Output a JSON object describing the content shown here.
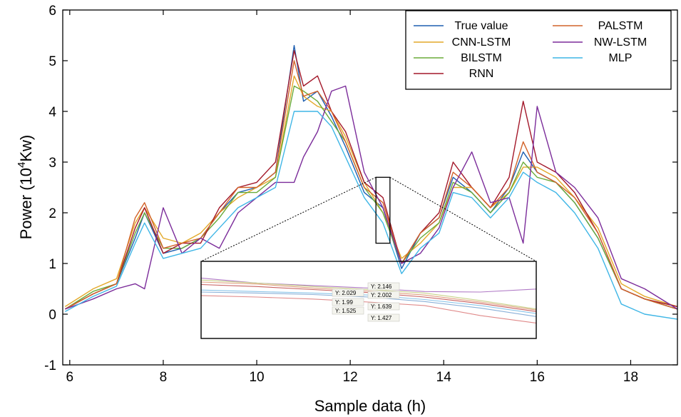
{
  "chart_data": {
    "type": "line",
    "xlabel": "Sample data (h)",
    "ylabel": {
      "main": "Power (10",
      "sup": "4",
      "tail": "Kw)"
    },
    "xlim": [
      5.85,
      19.0
    ],
    "ylim": [
      -1,
      6
    ],
    "xticks": [
      6,
      8,
      10,
      12,
      14,
      16,
      18
    ],
    "yticks": [
      -1,
      0,
      1,
      2,
      3,
      4,
      5,
      6
    ],
    "grid": false,
    "legend_position": "top-right",
    "x": [
      5.9,
      6.5,
      7.0,
      7.4,
      7.6,
      8.0,
      8.4,
      8.8,
      9.2,
      9.6,
      10.0,
      10.4,
      10.8,
      11.0,
      11.3,
      11.6,
      11.9,
      12.3,
      12.7,
      13.1,
      13.5,
      13.9,
      14.2,
      14.6,
      15.0,
      15.4,
      15.7,
      16.0,
      16.4,
      16.8,
      17.3,
      17.8,
      18.3,
      19.0
    ],
    "series": [
      {
        "name": "True value",
        "color": "#1f5fb0",
        "values": [
          0.1,
          0.4,
          0.6,
          1.5,
          2.0,
          1.2,
          1.3,
          1.5,
          2.0,
          2.4,
          2.5,
          2.8,
          5.3,
          4.2,
          4.4,
          3.9,
          3.3,
          2.4,
          2.1,
          0.9,
          1.6,
          1.9,
          2.7,
          2.4,
          2.0,
          2.5,
          3.2,
          2.8,
          2.6,
          2.2,
          1.5,
          0.5,
          0.3,
          0.1
        ]
      },
      {
        "name": "CNN-LSTM",
        "color": "#e3a92a",
        "values": [
          0.15,
          0.5,
          0.7,
          1.8,
          2.1,
          1.5,
          1.4,
          1.6,
          2.0,
          2.3,
          2.5,
          2.7,
          4.7,
          4.3,
          4.1,
          4.0,
          3.5,
          2.6,
          2.0,
          1.1,
          1.4,
          1.8,
          2.5,
          2.5,
          2.1,
          2.4,
          2.9,
          2.9,
          2.7,
          2.3,
          1.7,
          0.6,
          0.35,
          0.15
        ]
      },
      {
        "name": "BILSTM",
        "color": "#6aab3a",
        "values": [
          0.1,
          0.45,
          0.6,
          1.6,
          2.0,
          1.3,
          1.3,
          1.5,
          1.9,
          2.4,
          2.4,
          2.7,
          4.5,
          4.4,
          4.2,
          3.8,
          3.4,
          2.5,
          2.0,
          1.0,
          1.5,
          1.8,
          2.6,
          2.4,
          2.0,
          2.4,
          3.0,
          2.7,
          2.6,
          2.2,
          1.5,
          0.5,
          0.3,
          0.1
        ]
      },
      {
        "name": "RNN",
        "color": "#a3182a",
        "values": [
          0.1,
          0.4,
          0.6,
          1.7,
          2.1,
          1.2,
          1.4,
          1.4,
          2.1,
          2.5,
          2.6,
          3.0,
          5.2,
          4.5,
          4.7,
          4.0,
          3.6,
          2.6,
          2.3,
          1.0,
          1.6,
          2.0,
          3.0,
          2.5,
          2.1,
          2.7,
          4.2,
          3.0,
          2.8,
          2.4,
          1.6,
          0.5,
          0.3,
          0.15
        ]
      },
      {
        "name": "PALSTM",
        "color": "#d2632a",
        "values": [
          0.1,
          0.4,
          0.6,
          1.9,
          2.2,
          1.3,
          1.4,
          1.5,
          2.0,
          2.5,
          2.5,
          2.8,
          5.0,
          4.3,
          4.4,
          4.0,
          3.4,
          2.5,
          2.2,
          1.0,
          1.6,
          1.9,
          2.8,
          2.5,
          2.1,
          2.5,
          3.4,
          2.8,
          2.6,
          2.3,
          1.6,
          0.5,
          0.3,
          0.1
        ]
      },
      {
        "name": "NW-LSTM",
        "color": "#7b2c9a",
        "values": [
          0.1,
          0.3,
          0.5,
          0.6,
          0.5,
          2.1,
          1.2,
          1.5,
          1.3,
          2.0,
          2.3,
          2.6,
          2.6,
          3.1,
          3.6,
          4.4,
          4.5,
          2.8,
          2.1,
          1.0,
          1.2,
          1.7,
          2.5,
          3.2,
          2.2,
          2.3,
          1.4,
          4.1,
          2.8,
          2.5,
          1.9,
          0.7,
          0.5,
          0.1
        ]
      },
      {
        "name": "MLP",
        "color": "#3fb6e6",
        "values": [
          0.05,
          0.35,
          0.55,
          1.4,
          1.8,
          1.1,
          1.2,
          1.3,
          1.7,
          2.1,
          2.3,
          2.5,
          4.0,
          4.0,
          4.0,
          3.7,
          3.1,
          2.3,
          1.8,
          0.8,
          1.3,
          1.6,
          2.4,
          2.3,
          1.9,
          2.3,
          2.8,
          2.6,
          2.4,
          2.0,
          1.3,
          0.2,
          0.0,
          -0.1
        ]
      }
    ],
    "zoom_region": {
      "x": [
        12.55,
        12.85
      ],
      "y": [
        1.4,
        2.7
      ]
    },
    "inset": {
      "lines": [
        {
          "color": "#b07ac6",
          "values": [
            0.6,
            0.5,
            0.45,
            0.4,
            0.33,
            0.32,
            0.38
          ]
        },
        {
          "color": "#c9d28a",
          "values": [
            0.56,
            0.5,
            0.43,
            0.37,
            0.3,
            0.15,
            -0.02
          ]
        },
        {
          "color": "#e0a080",
          "values": [
            0.52,
            0.48,
            0.4,
            0.34,
            0.26,
            0.12,
            -0.04
          ]
        },
        {
          "color": "#c86060",
          "values": [
            0.47,
            0.43,
            0.37,
            0.31,
            0.22,
            0.09,
            -0.07
          ]
        },
        {
          "color": "#8ac4e8",
          "values": [
            0.36,
            0.33,
            0.3,
            0.26,
            0.17,
            0.05,
            -0.11
          ]
        },
        {
          "color": "#8ab0d8",
          "values": [
            0.32,
            0.3,
            0.27,
            0.22,
            0.13,
            0.0,
            -0.17
          ]
        },
        {
          "color": "#e08a8a",
          "values": [
            0.25,
            0.22,
            0.18,
            0.12,
            0.05,
            -0.15,
            -0.3
          ]
        }
      ],
      "tags": [
        "Y: 2.029",
        "Y: 2.146",
        "Y: 2.002",
        "Y: 1.99",
        "Y: 1.639",
        "Y: 1.525",
        "Y: 1.427"
      ]
    }
  }
}
